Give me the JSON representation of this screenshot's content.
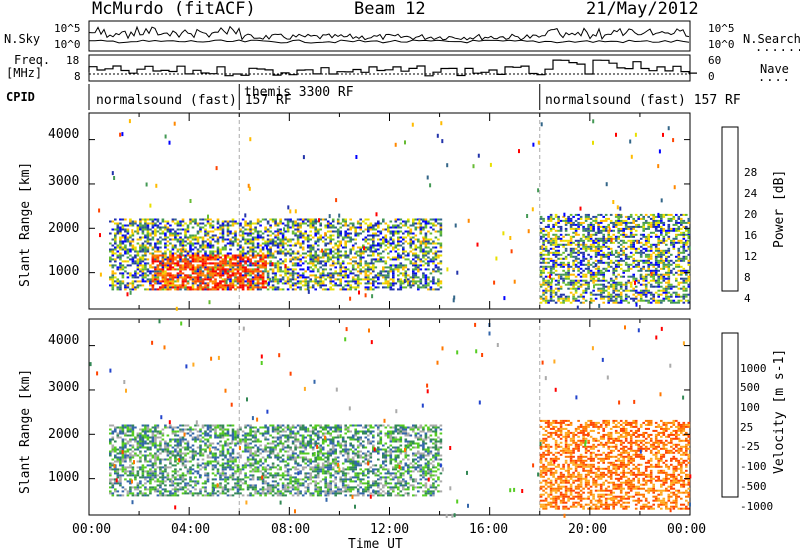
{
  "header": {
    "station": "McMurdo (fitACF)",
    "beam": "Beam 12",
    "date": "21/May/2012"
  },
  "side_labels": {
    "left_top": "N.Sky",
    "left_freq_1": "Freq.",
    "left_freq_2": "[MHz]",
    "left_cpid": "CPID",
    "right_top": "N.Search",
    "right_nave": "Nave"
  },
  "small_axes": {
    "nsky_ticks": [
      "10^5",
      "10^0"
    ],
    "nsearch_ticks": [
      "10^5",
      "10^0"
    ],
    "freq_ticks": [
      "18",
      "8"
    ],
    "nave_ticks": [
      "60",
      "0"
    ]
  },
  "cpid_segments": [
    {
      "label": "normalsound (fast) 157 RF",
      "start": "00:00"
    },
    {
      "label": "themis 3300 RF",
      "start": "06:00"
    },
    {
      "label": "normalsound (fast) 157 RF",
      "start": "18:00"
    }
  ],
  "chart_data": [
    {
      "type": "heatmap",
      "quantity": "Power",
      "colorbar_label": "Power [dB]",
      "colorbar_ticks": [
        "28",
        "24",
        "20",
        "16",
        "12",
        "8",
        "4"
      ],
      "colorbar_colors": [
        "#ff0000",
        "#ff4400",
        "#ff8800",
        "#ffbb00",
        "#e8e000",
        "#66bb33",
        "#449955",
        "#336688",
        "#2233aa",
        "#0000ff"
      ],
      "ylabel": "Slant Range [km]",
      "y_ticks": [
        "4000",
        "3000",
        "2000",
        "1000"
      ],
      "ylim": [
        180,
        4600
      ],
      "scatter_regions": [
        {
          "t0": 0.8,
          "t1": 14.0,
          "r0": 600,
          "r1": 2200,
          "dominant": "low-mid"
        },
        {
          "t0": 2.5,
          "t1": 7.0,
          "r0": 600,
          "r1": 1400,
          "dominant": "high (>28 dB)"
        },
        {
          "t0": 18.0,
          "t1": 24.0,
          "r0": 300,
          "r1": 2300,
          "dominant": "mixed"
        }
      ]
    },
    {
      "type": "heatmap",
      "quantity": "Velocity",
      "colorbar_label": "Velocity [m s-1]",
      "colorbar_ticks": [
        "1000",
        "500",
        "100",
        "25",
        "-25",
        "-100",
        "-500",
        "-1000"
      ],
      "colorbar_colors": [
        "#2244cc",
        "#3366aa",
        "#338855",
        "#55cc22",
        "#aaaaaa",
        "#ffaa22",
        "#ff7700",
        "#ff4400",
        "#ff0000"
      ],
      "ylabel": "Slant Range [km]",
      "y_ticks": [
        "4000",
        "3000",
        "2000",
        "1000"
      ],
      "ylim": [
        180,
        4600
      ],
      "scatter_regions": [
        {
          "t0": 0.8,
          "t1": 14.0,
          "r0": 600,
          "r1": 2200,
          "dominant": "positive (green)"
        },
        {
          "t0": 18.0,
          "t1": 24.0,
          "r0": 300,
          "r1": 2300,
          "dominant": "negative (orange)"
        }
      ]
    }
  ],
  "x_axis": {
    "ticks": [
      "00:00",
      "04:00",
      "08:00",
      "12:00",
      "16:00",
      "20:00",
      "00:00"
    ],
    "label": "Time UT"
  }
}
